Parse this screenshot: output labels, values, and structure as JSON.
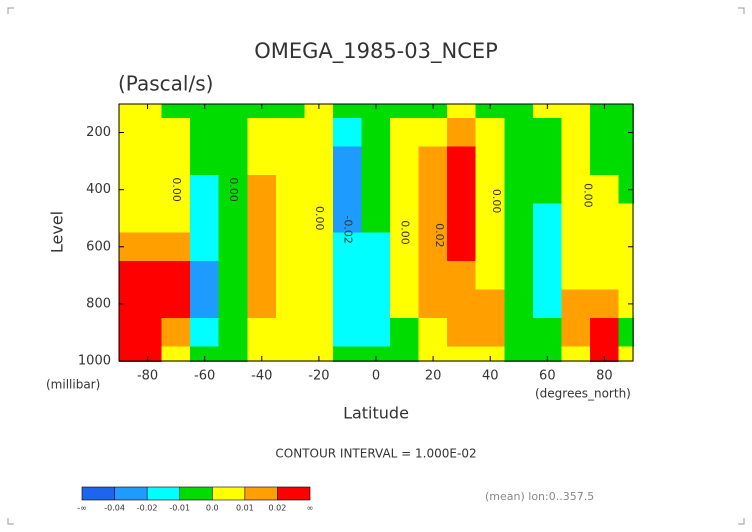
{
  "chart_data": {
    "type": "contour",
    "title": "OMEGA_1985-03_NCEP",
    "subtitle": "(Pascal/s)",
    "ylabel": "Level",
    "yunits": "(millibar)",
    "xlabel": "Latitude",
    "xunits": "(degrees_north)",
    "note": "CONTOUR INTERVAL = 1.000E-02",
    "footer": "(mean) lon:0..357.5",
    "x": [
      -90,
      -80,
      -70,
      -60,
      -50,
      -40,
      -30,
      -20,
      -10,
      0,
      10,
      20,
      30,
      40,
      50,
      60,
      70,
      80,
      90
    ],
    "y": [
      100,
      200,
      300,
      400,
      500,
      600,
      700,
      800,
      900,
      1000
    ],
    "z": [
      [
        0.005,
        0.005,
        -0.005,
        -0.005,
        -0.005,
        -0.005,
        -0.003,
        0.003,
        -0.005,
        -0.005,
        -0.003,
        -0.005,
        0.003,
        -0.003,
        -0.005,
        0.003,
        0.003,
        -0.003,
        -0.005
      ],
      [
        0.005,
        0.005,
        0.003,
        -0.005,
        -0.005,
        0.005,
        0.005,
        0.003,
        -0.012,
        -0.005,
        0.003,
        0.005,
        0.012,
        0.005,
        -0.005,
        -0.003,
        0.003,
        -0.005,
        -0.005
      ],
      [
        0.005,
        0.005,
        0.005,
        -0.005,
        -0.005,
        0.008,
        0.005,
        0.003,
        -0.025,
        -0.008,
        0.005,
        0.012,
        0.025,
        0.005,
        -0.005,
        -0.005,
        0.003,
        -0.005,
        -0.005
      ],
      [
        0.005,
        0.005,
        0.005,
        -0.015,
        -0.005,
        0.015,
        0.005,
        0.003,
        -0.03,
        -0.008,
        0.005,
        0.015,
        0.03,
        0.005,
        -0.005,
        -0.005,
        0.005,
        0.003,
        -0.005
      ],
      [
        0.005,
        0.008,
        0.005,
        -0.015,
        -0.005,
        0.015,
        0.005,
        0.003,
        -0.03,
        -0.008,
        0.005,
        0.015,
        0.03,
        0.005,
        -0.005,
        -0.012,
        0.005,
        0.005,
        0.005
      ],
      [
        0.015,
        0.015,
        0.012,
        -0.018,
        -0.005,
        0.015,
        0.005,
        0.003,
        -0.015,
        -0.012,
        0.005,
        0.015,
        0.03,
        0.005,
        -0.005,
        -0.012,
        0.005,
        0.005,
        0.005
      ],
      [
        0.04,
        0.04,
        0.025,
        -0.025,
        -0.005,
        0.015,
        0.005,
        0.003,
        -0.012,
        -0.015,
        0.005,
        0.015,
        0.015,
        0.005,
        -0.005,
        -0.012,
        0.005,
        0.005,
        0.005
      ],
      [
        0.04,
        0.04,
        0.03,
        -0.03,
        -0.005,
        0.015,
        0.005,
        0.003,
        -0.012,
        -0.015,
        0.005,
        0.015,
        0.012,
        0.012,
        -0.005,
        -0.012,
        0.012,
        0.015,
        0.005
      ],
      [
        0.04,
        0.04,
        0.015,
        -0.015,
        -0.005,
        0.008,
        0.005,
        0.003,
        -0.012,
        -0.015,
        -0.005,
        0.008,
        0.012,
        0.012,
        -0.005,
        -0.005,
        0.015,
        0.025,
        -0.003
      ],
      [
        0.04,
        0.04,
        0.005,
        -0.005,
        -0.005,
        0.003,
        0.005,
        0.003,
        -0.005,
        -0.005,
        -0.005,
        0.003,
        0.005,
        0.005,
        -0.005,
        -0.003,
        0.008,
        0.03,
        0.003
      ]
    ],
    "xlim": [
      -90,
      90
    ],
    "xticks": [
      -80,
      -60,
      -40,
      -20,
      0,
      20,
      40,
      60,
      80
    ],
    "ylim": [
      100,
      1000
    ],
    "yticks": [
      200,
      400,
      600,
      800,
      1000
    ],
    "contour_labels": [
      "0.00",
      "0.00",
      "0.00",
      "-0.02",
      "0.00",
      "0.02",
      "0.00",
      "0.00"
    ],
    "colorbar": {
      "ticks": [
        "-∞",
        -0.04,
        -0.02,
        -0.01,
        {
          "value": 0,
          "label": "0.0"
        },
        0.01,
        0.02,
        "∞"
      ],
      "colors": [
        "#1f64f0",
        "#1e9bff",
        "#00ffff",
        "#00dc00",
        "#ffff00",
        "#ffa000",
        "#ff0000"
      ]
    }
  }
}
